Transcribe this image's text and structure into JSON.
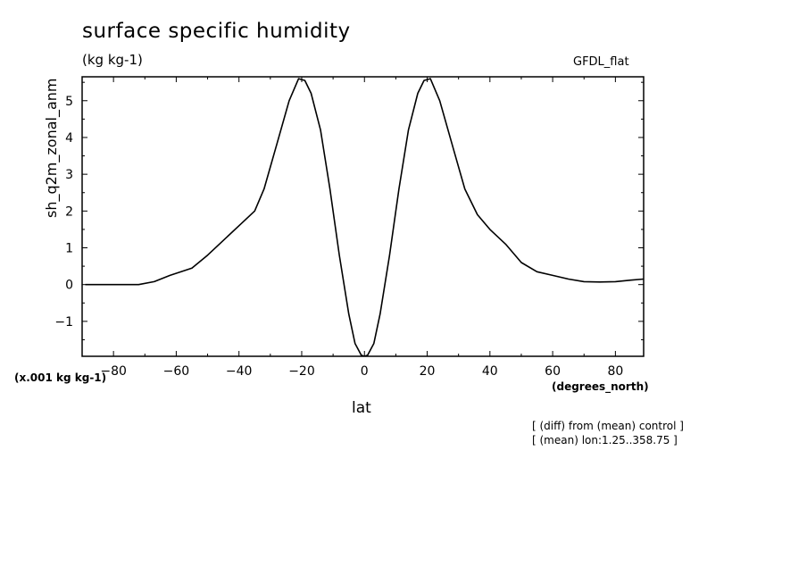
{
  "header": {
    "title": "surface specific humidity",
    "units": "(kg kg-1)",
    "model": "GFDL_flat"
  },
  "axes": {
    "ylabel": "sh_q2m_zonal_anm",
    "scale_note": "(x.001 kg kg-1)",
    "xlabel": "lat",
    "xunits": "(degrees_north)"
  },
  "notes": [
    "[ (diff) from (mean) control ]",
    "[ (mean) lon:1.25..358.75 ]"
  ],
  "chart_data": {
    "type": "line",
    "title": "surface specific humidity",
    "xlabel": "lat",
    "ylabel": "sh_q2m_zonal_anm",
    "xlim": [
      -90,
      89
    ],
    "ylim": [
      -1.95,
      5.65
    ],
    "xticks": [
      -80,
      -60,
      -40,
      -20,
      0,
      20,
      40,
      60,
      80
    ],
    "yticks": [
      -1,
      0,
      1,
      2,
      3,
      4,
      5
    ],
    "grid": false,
    "series": [
      {
        "x": [
          -89,
          -80,
          -72,
          -67,
          -62,
          -55,
          -50,
          -45,
          -40,
          -35,
          -32,
          -28,
          -24,
          -21,
          -19,
          -17,
          -14,
          -11,
          -8,
          -5,
          -3,
          -1,
          0,
          1,
          3,
          5,
          8,
          11,
          14,
          17,
          19,
          21,
          24,
          28,
          32,
          36,
          40,
          45,
          50,
          55,
          60,
          65,
          70,
          75,
          80,
          85,
          89
        ],
        "y": [
          0,
          0,
          0,
          0.08,
          0.25,
          0.45,
          0.8,
          1.2,
          1.6,
          2.0,
          2.6,
          3.8,
          5.0,
          5.6,
          5.55,
          5.2,
          4.2,
          2.6,
          0.8,
          -0.8,
          -1.6,
          -1.92,
          -1.95,
          -1.92,
          -1.6,
          -0.8,
          0.8,
          2.6,
          4.2,
          5.2,
          5.55,
          5.6,
          5.0,
          3.8,
          2.6,
          1.9,
          1.5,
          1.1,
          0.6,
          0.35,
          0.25,
          0.15,
          0.08,
          0.07,
          0.08,
          0.12,
          0.15
        ]
      }
    ]
  }
}
